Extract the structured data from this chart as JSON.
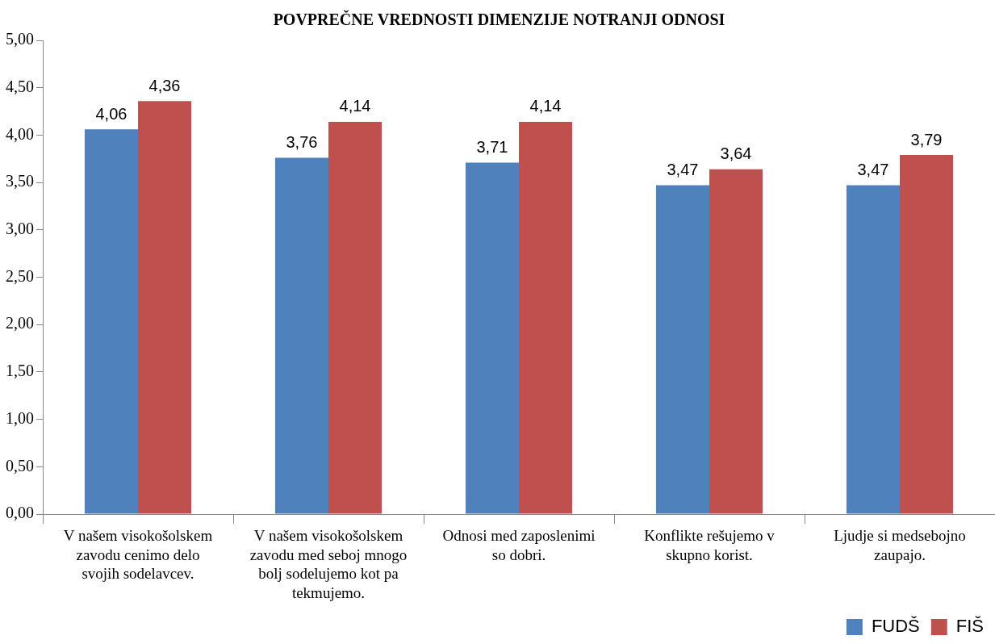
{
  "chart_data": {
    "type": "bar",
    "title": "POVPREČNE VREDNOSTI DIMENZIJE NOTRANJI ODNOSI",
    "categories": [
      "V našem visokošolskem zavodu cenimo delo svojih sodelavcev.",
      "V našem visokošolskem zavodu med seboj mnogo bolj sodelujemo kot pa tekmujemo.",
      "Odnosi med zaposlenimi so dobri.",
      "Konflikte rešujemo v skupno korist.",
      "Ljudje si medsebojno zaupajo."
    ],
    "series": [
      {
        "name": "FUDŠ",
        "color": "#4f81bd",
        "values": [
          4.06,
          3.76,
          3.71,
          3.47,
          3.47
        ],
        "value_labels": [
          "4,06",
          "3,76",
          "3,71",
          "3,47",
          "3,47"
        ]
      },
      {
        "name": "FIŠ",
        "color": "#c0504d",
        "values": [
          4.36,
          4.14,
          4.14,
          3.64,
          3.79
        ],
        "value_labels": [
          "4,36",
          "4,14",
          "4,14",
          "3,64",
          "3,79"
        ]
      }
    ],
    "ylim": [
      0,
      5
    ],
    "yticks": [
      {
        "value": 0,
        "label": "0,00"
      },
      {
        "value": 0.5,
        "label": "0,50"
      },
      {
        "value": 1,
        "label": "1,00"
      },
      {
        "value": 1.5,
        "label": "1,50"
      },
      {
        "value": 2,
        "label": "2,00"
      },
      {
        "value": 2.5,
        "label": "2,50"
      },
      {
        "value": 3,
        "label": "3,00"
      },
      {
        "value": 3.5,
        "label": "3,50"
      },
      {
        "value": 4,
        "label": "4,00"
      },
      {
        "value": 4.5,
        "label": "4,50"
      },
      {
        "value": 5,
        "label": "5,00"
      }
    ],
    "grid": false,
    "legend": "bottom"
  }
}
